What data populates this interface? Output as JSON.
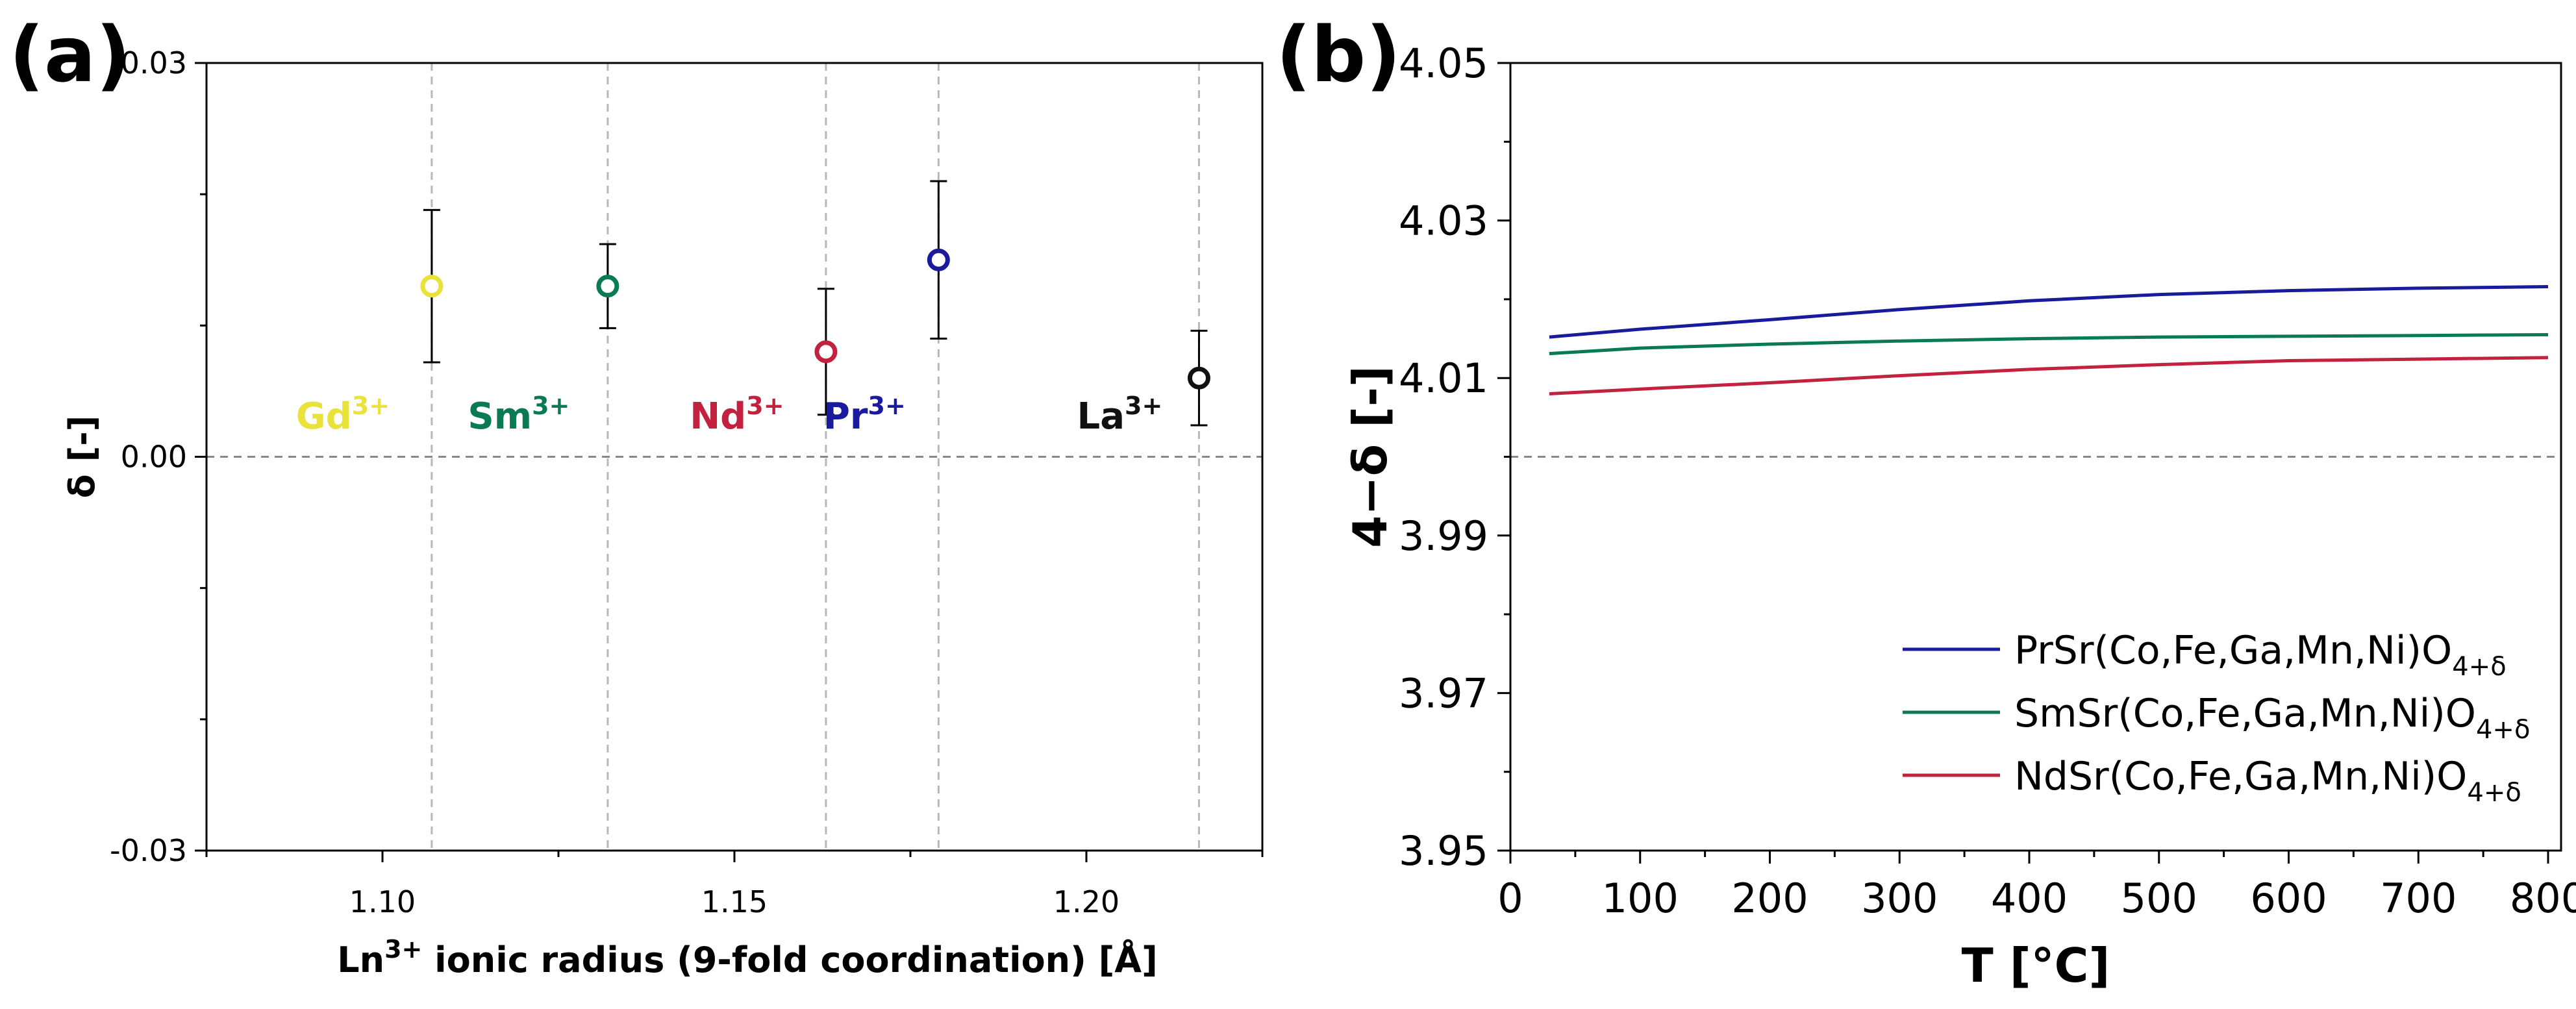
{
  "panel_a_label": "(a)",
  "panel_b_label": "(b)",
  "chart_data": [
    {
      "type": "scatter",
      "panel": "a",
      "xlabel_pre": "Ln",
      "xlabel_sup": "3+",
      "xlabel_post": " ionic radius (9-fold coordination) [Å]",
      "ylabel": "δ [-]",
      "xlim": [
        1.075,
        1.225
      ],
      "ylim": [
        -0.03,
        0.03
      ],
      "x_ticks": [
        1.1,
        1.15,
        1.2
      ],
      "x_tick_labels": [
        "1.10",
        "1.15",
        "1.20"
      ],
      "y_ticks": [
        -0.03,
        0.0,
        0.03
      ],
      "y_tick_labels": [
        "-0.03",
        "0.00",
        "0.03"
      ],
      "reference_line_y": 0.0,
      "grid": "vertical dashed lines at data points",
      "points": [
        {
          "ion": "Gd",
          "charge": "3+",
          "x": 1.107,
          "y": 0.013,
          "err": 0.0058,
          "color": "#e8e23a"
        },
        {
          "ion": "Sm",
          "charge": "3+",
          "x": 1.132,
          "y": 0.013,
          "err": 0.0032,
          "color": "#0a7a52"
        },
        {
          "ion": "Nd",
          "charge": "3+",
          "x": 1.163,
          "y": 0.008,
          "err": 0.0048,
          "color": "#c2213f"
        },
        {
          "ion": "Pr",
          "charge": "3+",
          "x": 1.179,
          "y": 0.015,
          "err": 0.006,
          "color": "#1a1a9c"
        },
        {
          "ion": "La",
          "charge": "3+",
          "x": 1.216,
          "y": 0.006,
          "err": 0.0036,
          "color": "#111111"
        }
      ]
    },
    {
      "type": "line",
      "panel": "b",
      "xlabel": "T [°C]",
      "ylabel": "4−δ [-]",
      "xlim": [
        0,
        810
      ],
      "ylim": [
        3.95,
        4.05
      ],
      "x_ticks": [
        0,
        100,
        200,
        300,
        400,
        500,
        600,
        700,
        800
      ],
      "y_ticks": [
        3.95,
        3.97,
        3.99,
        4.01,
        4.03,
        4.05
      ],
      "y_tick_labels": [
        "3.95",
        "3.97",
        "3.99",
        "4.01",
        "4.03",
        "4.05"
      ],
      "reference_line_y": 4.0,
      "legend_position": "bottom-right",
      "series": [
        {
          "name": "PrSr(Co,Fe,Ga,Mn,Ni)O",
          "sub": "4+δ",
          "color": "#1a1a9c",
          "x": [
            30,
            100,
            200,
            300,
            400,
            500,
            600,
            700,
            800
          ],
          "y": [
            4.0152,
            4.0162,
            4.0174,
            4.0187,
            4.0198,
            4.0206,
            4.0211,
            4.0214,
            4.0216
          ]
        },
        {
          "name": "SmSr(Co,Fe,Ga,Mn,Ni)O",
          "sub": "4+δ",
          "color": "#0a7a52",
          "x": [
            30,
            100,
            200,
            300,
            400,
            500,
            600,
            700,
            800
          ],
          "y": [
            4.0131,
            4.0138,
            4.0143,
            4.0147,
            4.015,
            4.0152,
            4.0153,
            4.0154,
            4.0155
          ]
        },
        {
          "name": "NdSr(Co,Fe,Ga,Mn,Ni)O",
          "sub": "4+δ",
          "color": "#c2213f",
          "x": [
            30,
            100,
            200,
            300,
            400,
            500,
            600,
            700,
            800
          ],
          "y": [
            4.008,
            4.0086,
            4.0094,
            4.0103,
            4.0111,
            4.0117,
            4.0122,
            4.0124,
            4.0126
          ]
        }
      ]
    }
  ]
}
